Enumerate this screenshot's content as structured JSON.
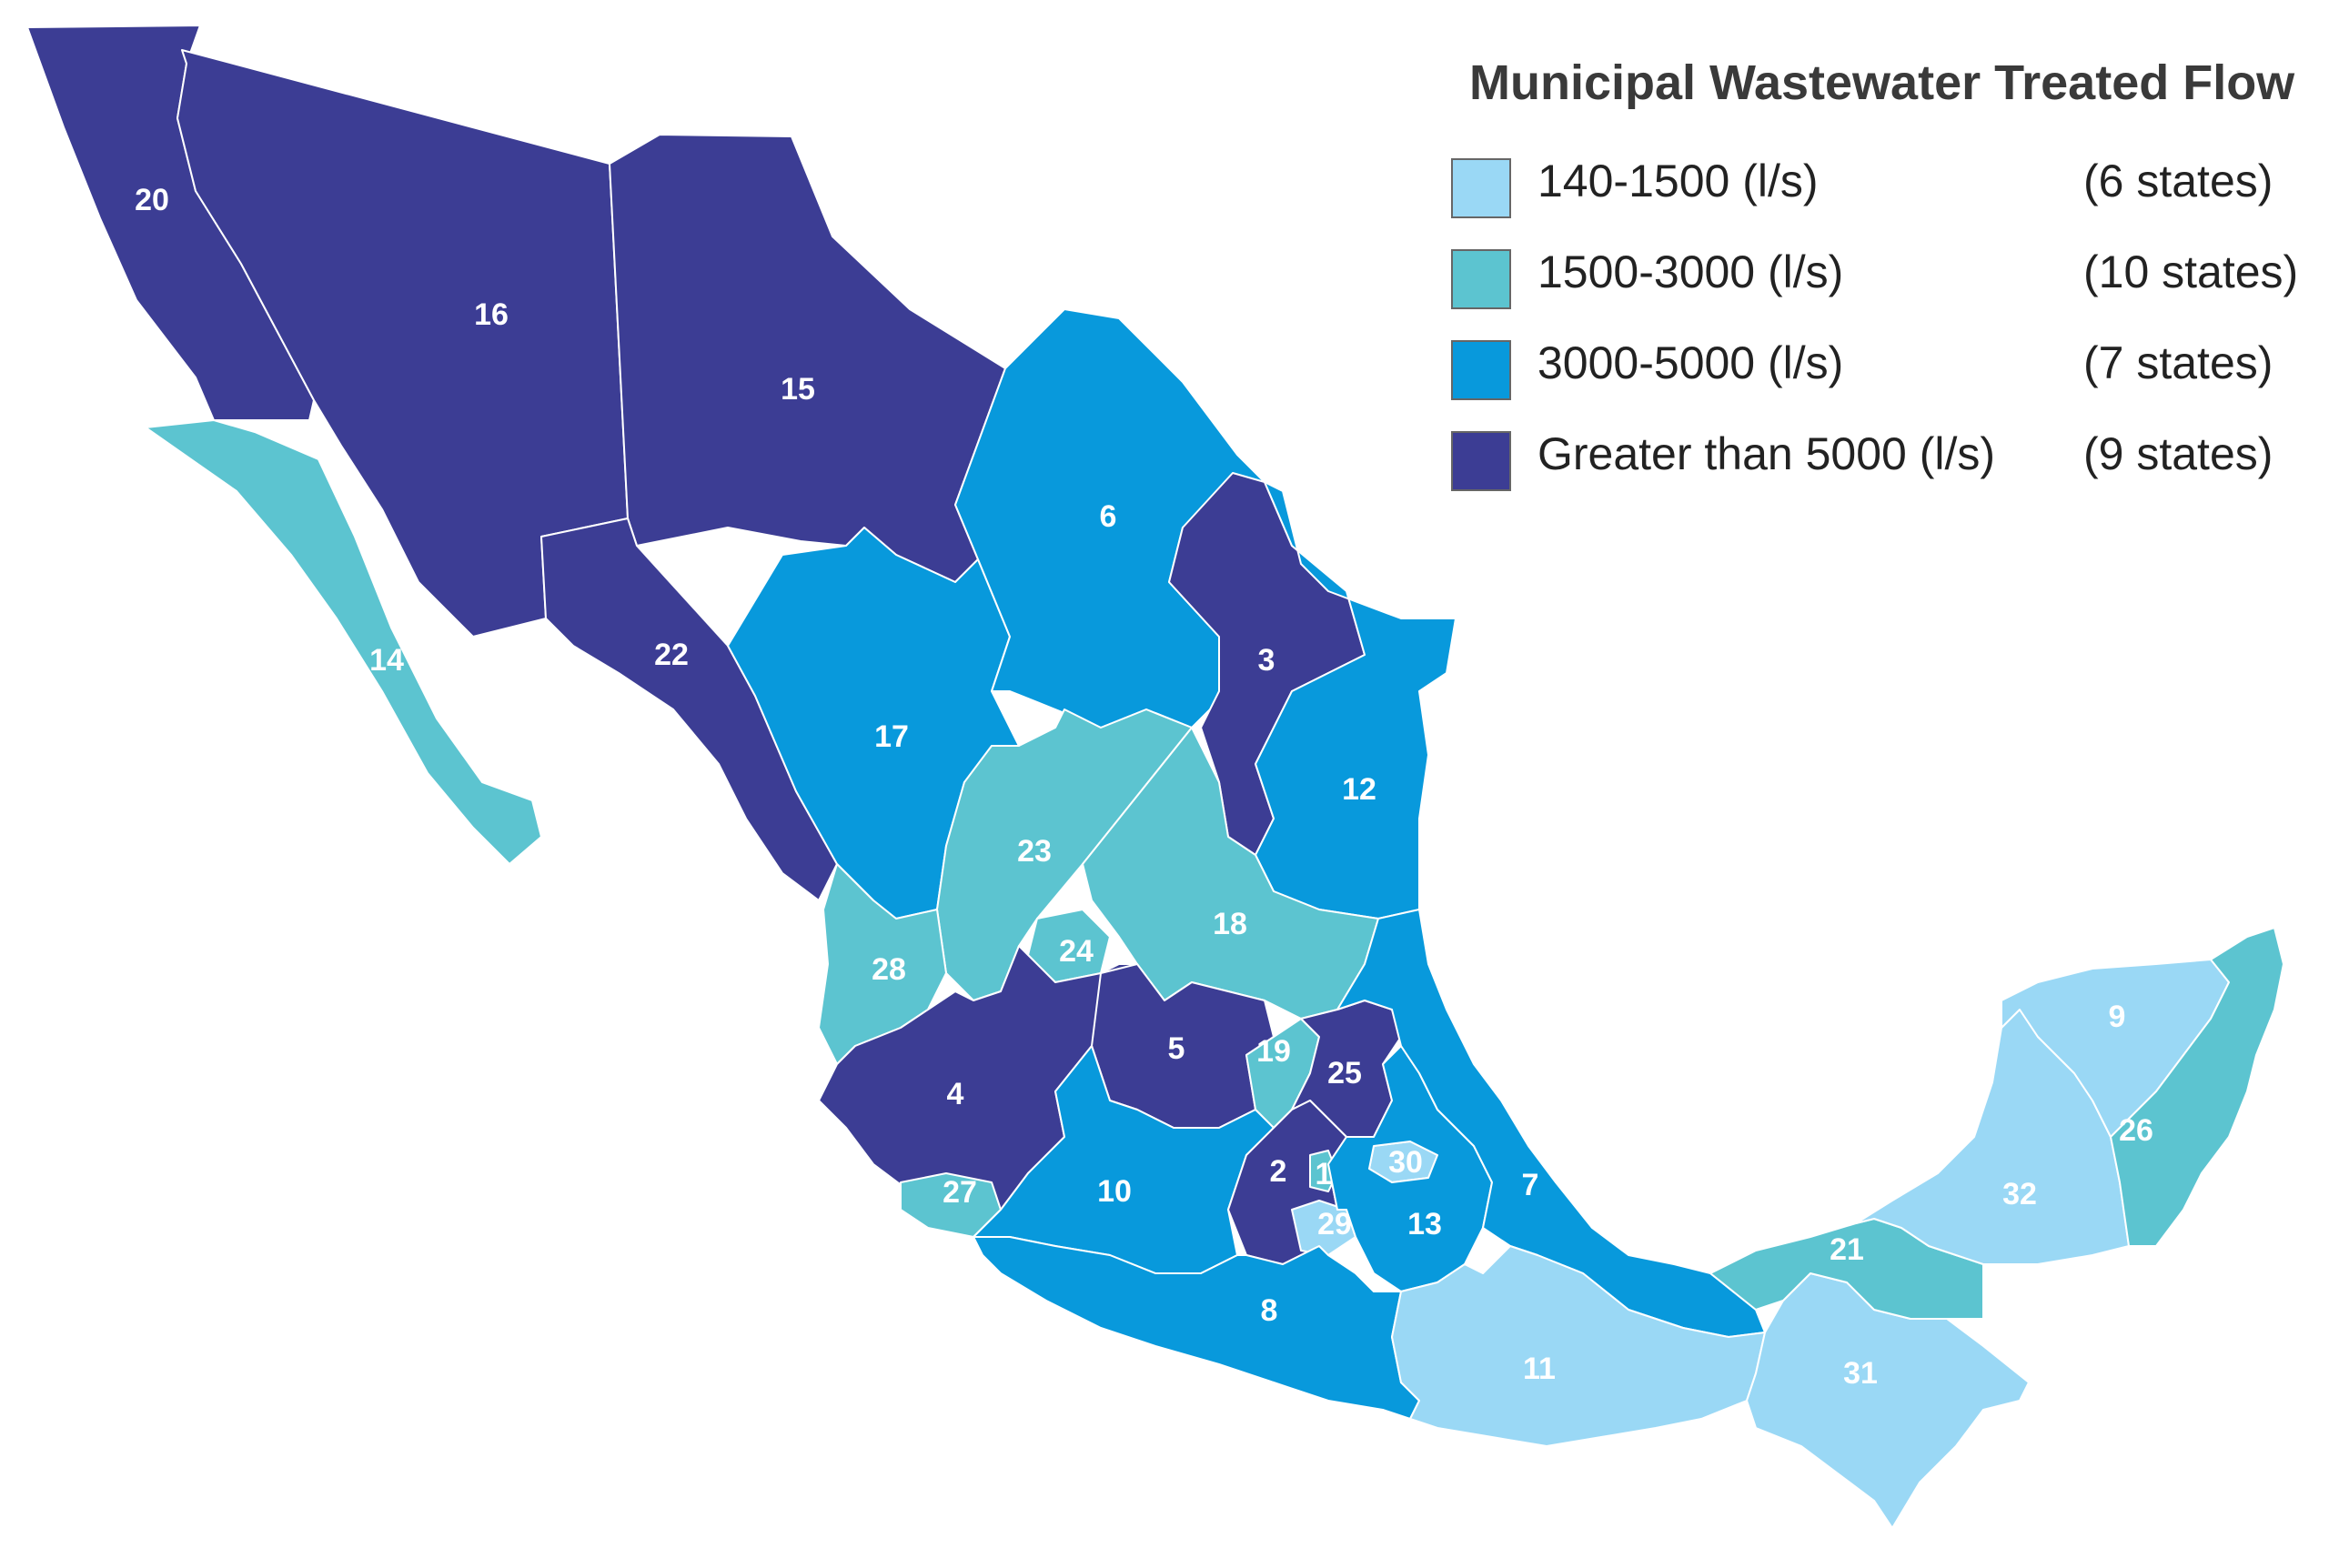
{
  "legend": {
    "title": "Municipal Wastewater Treated Flow",
    "classes": [
      {
        "range": "140-1500 (l/s)",
        "count": "(6 states)",
        "color": "#9ad8f5"
      },
      {
        "range": "1500-3000 (l/s)",
        "count": "(10 states)",
        "color": "#5cc4d0"
      },
      {
        "range": "3000-5000 (l/s)",
        "count": "(7 states)",
        "color": "#0899dc"
      },
      {
        "range": "Greater than 5000 (l/s)",
        "count": "(9 states)",
        "color": "#3c3d94"
      }
    ]
  },
  "regions": [
    {
      "id": "1",
      "class": 1
    },
    {
      "id": "2",
      "class": 3
    },
    {
      "id": "3",
      "class": 3
    },
    {
      "id": "4",
      "class": 3
    },
    {
      "id": "5",
      "class": 3
    },
    {
      "id": "6",
      "class": 2
    },
    {
      "id": "7",
      "class": 2
    },
    {
      "id": "8",
      "class": 2
    },
    {
      "id": "9",
      "class": 0
    },
    {
      "id": "10",
      "class": 2
    },
    {
      "id": "11",
      "class": 0
    },
    {
      "id": "12",
      "class": 2
    },
    {
      "id": "13",
      "class": 2
    },
    {
      "id": "14",
      "class": 1
    },
    {
      "id": "15",
      "class": 3
    },
    {
      "id": "16",
      "class": 3
    },
    {
      "id": "17",
      "class": 2
    },
    {
      "id": "18",
      "class": 1
    },
    {
      "id": "19",
      "class": 1
    },
    {
      "id": "20",
      "class": 3
    },
    {
      "id": "21",
      "class": 1
    },
    {
      "id": "22",
      "class": 3
    },
    {
      "id": "23",
      "class": 1
    },
    {
      "id": "24",
      "class": 1
    },
    {
      "id": "25",
      "class": 3
    },
    {
      "id": "26",
      "class": 1
    },
    {
      "id": "27",
      "class": 1
    },
    {
      "id": "28",
      "class": 1
    },
    {
      "id": "29",
      "class": 0
    },
    {
      "id": "30",
      "class": 0
    },
    {
      "id": "31",
      "class": 0
    },
    {
      "id": "32",
      "class": 0
    }
  ]
}
